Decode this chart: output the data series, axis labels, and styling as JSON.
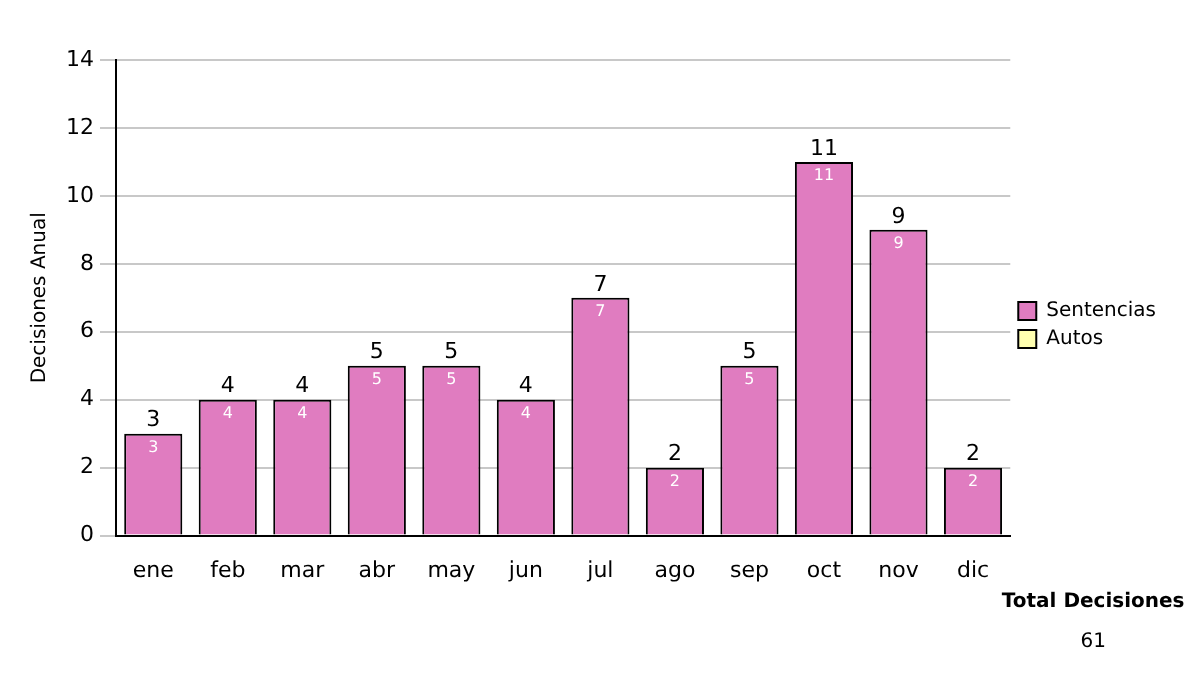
{
  "chart_data": {
    "type": "bar",
    "stacked": true,
    "ylabel": "Decisiones Anual",
    "categories": [
      "ene",
      "feb",
      "mar",
      "abr",
      "may",
      "jun",
      "jul",
      "ago",
      "sep",
      "oct",
      "nov",
      "dic"
    ],
    "series": [
      {
        "name": "Sentencias",
        "color": "#e07cc0",
        "values": [
          3,
          4,
          4,
          5,
          5,
          4,
          7,
          2,
          5,
          11,
          9,
          2
        ],
        "value_labels": [
          "3",
          "4",
          "4",
          "5",
          "5",
          "4",
          "7",
          "2",
          "5",
          "11",
          "9",
          "2"
        ]
      },
      {
        "name": "Autos",
        "color": "#ffffb0",
        "values": [
          0,
          0,
          0,
          0,
          0,
          0,
          0,
          0,
          0,
          0,
          0,
          0
        ]
      }
    ],
    "ylim": [
      0,
      14
    ],
    "yticks": [
      0,
      2,
      4,
      6,
      8,
      10,
      12,
      14
    ],
    "grid": "y",
    "legend": "right",
    "totals": [
      "3",
      "4",
      "4",
      "5",
      "5",
      "4",
      "7",
      "2",
      "5",
      "11",
      "9",
      "2"
    ],
    "annotations": [
      "Total Decisiones",
      "61"
    ]
  }
}
